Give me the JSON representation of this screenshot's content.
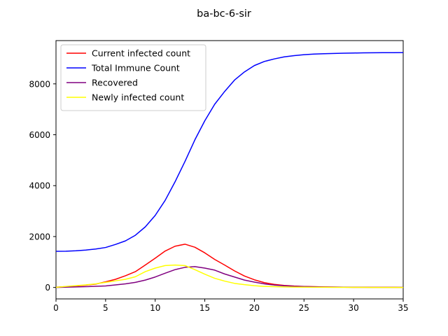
{
  "chart_data": {
    "type": "line",
    "title": "ba-bc-6-sir",
    "xlabel": "",
    "ylabel": "",
    "xlim": [
      0,
      35
    ],
    "ylim": [
      -450,
      9700
    ],
    "xticks": [
      0,
      5,
      10,
      15,
      20,
      25,
      30,
      35
    ],
    "yticks": [
      0,
      2000,
      4000,
      6000,
      8000
    ],
    "grid": false,
    "legend_position": "top-left",
    "x": [
      0,
      1,
      2,
      3,
      4,
      5,
      6,
      7,
      8,
      9,
      10,
      11,
      12,
      13,
      14,
      15,
      16,
      17,
      18,
      19,
      20,
      21,
      22,
      23,
      24,
      25,
      26,
      27,
      28,
      29,
      30,
      31,
      32,
      33,
      34,
      35
    ],
    "series": [
      {
        "name": "Current infected count",
        "color": "#ff0000",
        "values": [
          10,
          30,
          60,
          90,
          130,
          220,
          320,
          460,
          620,
          880,
          1150,
          1430,
          1620,
          1700,
          1580,
          1360,
          1100,
          880,
          650,
          450,
          300,
          190,
          120,
          80,
          55,
          40,
          30,
          22,
          15,
          10,
          8,
          6,
          5,
          4,
          3,
          2
        ]
      },
      {
        "name": "Total Immune Count",
        "color": "#0000ff",
        "values": [
          1420,
          1425,
          1440,
          1470,
          1510,
          1570,
          1690,
          1830,
          2050,
          2380,
          2830,
          3420,
          4150,
          4950,
          5800,
          6550,
          7200,
          7700,
          8150,
          8470,
          8720,
          8880,
          8980,
          9060,
          9110,
          9145,
          9170,
          9185,
          9195,
          9205,
          9212,
          9218,
          9222,
          9225,
          9227,
          9228
        ]
      },
      {
        "name": "Recovered",
        "color": "#800080",
        "values": [
          0,
          10,
          20,
          30,
          45,
          60,
          100,
          140,
          200,
          290,
          410,
          560,
          700,
          790,
          820,
          760,
          680,
          530,
          410,
          290,
          210,
          140,
          95,
          65,
          45,
          35,
          25,
          18,
          14,
          10,
          8,
          6,
          5,
          4,
          3,
          3
        ]
      },
      {
        "name": "Newly infected count",
        "color": "#ffff00",
        "values": [
          5,
          40,
          70,
          100,
          140,
          200,
          260,
          320,
          420,
          620,
          760,
          860,
          880,
          860,
          700,
          520,
          360,
          250,
          160,
          110,
          70,
          40,
          30,
          20,
          15,
          10,
          8,
          6,
          5,
          4,
          3,
          3,
          2,
          2,
          2,
          2
        ]
      }
    ]
  }
}
